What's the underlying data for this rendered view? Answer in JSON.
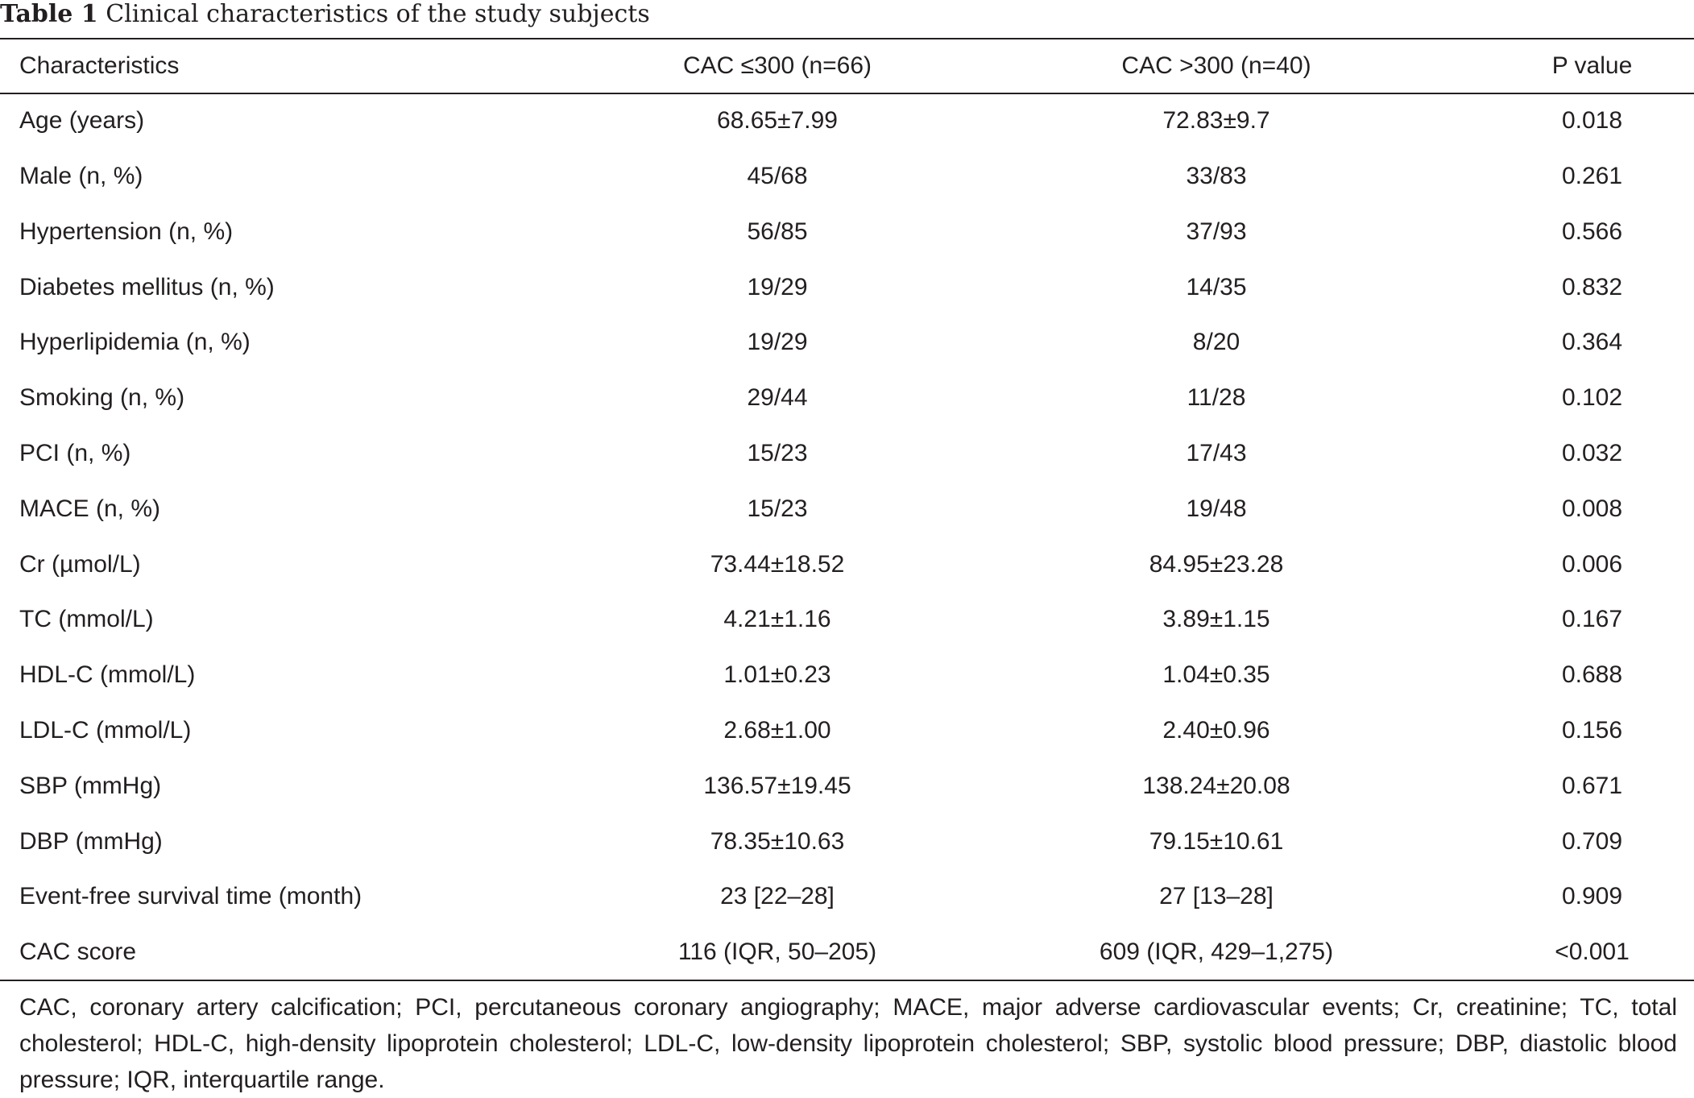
{
  "caption": {
    "label": "Table 1",
    "title": "Clinical characteristics of the study subjects"
  },
  "table": {
    "headers": [
      "Characteristics",
      "CAC ≤300 (n=66)",
      "CAC >300 (n=40)",
      "P value"
    ],
    "rows": [
      [
        "Age (years)",
        "68.65±7.99",
        "72.83±9.7",
        "0.018"
      ],
      [
        "Male (n, %)",
        "45/68",
        "33/83",
        "0.261"
      ],
      [
        "Hypertension (n, %)",
        "56/85",
        "37/93",
        "0.566"
      ],
      [
        "Diabetes mellitus (n, %)",
        "19/29",
        "14/35",
        "0.832"
      ],
      [
        "Hyperlipidemia (n, %)",
        "19/29",
        "8/20",
        "0.364"
      ],
      [
        "Smoking (n, %)",
        "29/44",
        "11/28",
        "0.102"
      ],
      [
        "PCI (n, %)",
        "15/23",
        "17/43",
        "0.032"
      ],
      [
        "MACE (n, %)",
        "15/23",
        "19/48",
        "0.008"
      ],
      [
        "Cr (µmol/L)",
        "73.44±18.52",
        "84.95±23.28",
        "0.006"
      ],
      [
        "TC (mmol/L)",
        "4.21±1.16",
        "3.89±1.15",
        "0.167"
      ],
      [
        "HDL-C (mmol/L)",
        "1.01±0.23",
        "1.04±0.35",
        "0.688"
      ],
      [
        "LDL-C (mmol/L)",
        "2.68±1.00",
        "2.40±0.96",
        "0.156"
      ],
      [
        "SBP (mmHg)",
        "136.57±19.45",
        "138.24±20.08",
        "0.671"
      ],
      [
        "DBP (mmHg)",
        "78.35±10.63",
        "79.15±10.61",
        "0.709"
      ],
      [
        "Event-free survival time (month)",
        "23 [22–28]",
        "27 [13–28]",
        "0.909"
      ],
      [
        "CAC score",
        "116 (IQR, 50–205)",
        "609 (IQR, 429–1,275)",
        "<0.001"
      ]
    ]
  },
  "footnote": "CAC, coronary artery calcification; PCI, percutaneous coronary angiography; MACE, major adverse cardiovascular events; Cr, creatinine; TC, total cholesterol; HDL-C, high-density lipoprotein cholesterol; LDL-C, low-density lipoprotein cholesterol; SBP, systolic blood pressure; DBP, diastolic blood pressure; IQR, interquartile range."
}
